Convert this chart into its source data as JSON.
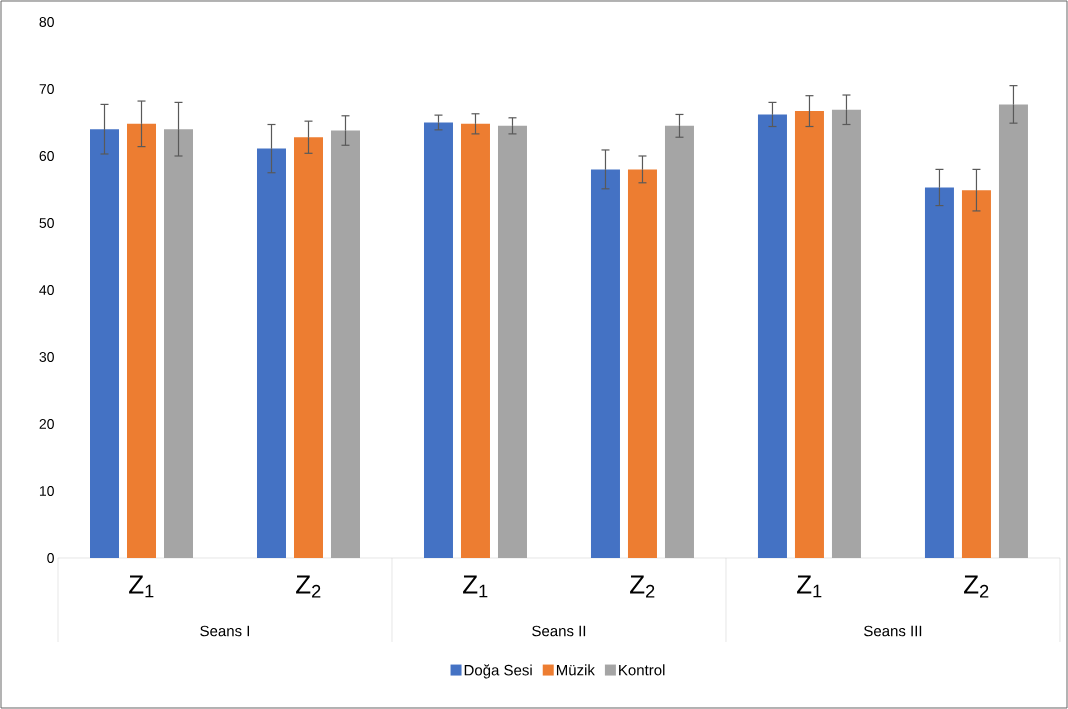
{
  "chart_data": {
    "type": "bar",
    "categories": [
      "Z$_{1}$",
      "Z$_{2}$",
      "Z$_{1}$",
      "Z$_{2}$",
      "Z$_{1}$",
      "Z$_{2}$"
    ],
    "annotations": [
      "Seans I",
      "Seans II",
      "Seans III"
    ],
    "series": [
      {
        "name": "Doğa Sesi",
        "color": "#4472c4",
        "values": [
          64.0,
          61.1,
          65.0,
          58.0,
          66.2,
          55.3
        ],
        "errors": [
          3.7,
          3.6,
          1.1,
          2.9,
          1.8,
          2.7
        ]
      },
      {
        "name": "Müzik",
        "color": "#ed7d31",
        "values": [
          64.8,
          62.8,
          64.8,
          58.0,
          66.7,
          54.9
        ],
        "errors": [
          3.4,
          2.4,
          1.5,
          2.0,
          2.3,
          3.1
        ]
      },
      {
        "name": "Kontrol",
        "color": "#a5a5a5",
        "values": [
          64.0,
          63.8,
          64.5,
          64.5,
          66.9,
          67.7
        ],
        "errors": [
          4.0,
          2.2,
          1.2,
          1.7,
          2.2,
          2.8
        ]
      }
    ],
    "ylim": [
      0,
      80
    ],
    "yticks": [
      0,
      10,
      20,
      30,
      40,
      50,
      60,
      70,
      80
    ],
    "legend": "bottom"
  }
}
